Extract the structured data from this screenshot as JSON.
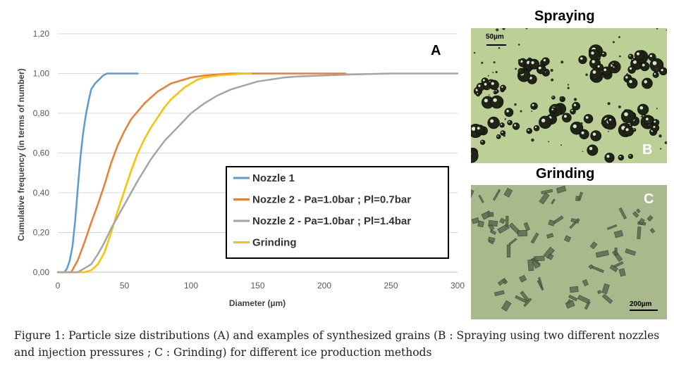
{
  "chart_data": {
    "type": "line",
    "letter": "A",
    "xlabel": "Diameter (µm)",
    "ylabel": "Cumulative frequency (in terms of number)",
    "xlim": [
      0,
      300
    ],
    "ylim": [
      0,
      1.2
    ],
    "xticks": [
      "0",
      "50",
      "100",
      "150",
      "200",
      "250",
      "300"
    ],
    "yticks": [
      "0,00",
      "0,20",
      "0,40",
      "0,60",
      "0,80",
      "1,00",
      "1,20"
    ],
    "grid": "horizontal",
    "legend_position": "center-right",
    "series": [
      {
        "name": "Nozzle 1",
        "color": "#5b9bd5",
        "x": [
          0,
          5,
          7,
          9,
          11,
          13,
          15,
          17,
          19,
          21,
          23,
          25,
          28,
          31,
          34,
          37,
          40,
          45,
          50,
          60
        ],
        "y": [
          0,
          0,
          0.02,
          0.06,
          0.13,
          0.26,
          0.42,
          0.58,
          0.7,
          0.79,
          0.86,
          0.92,
          0.95,
          0.97,
          0.99,
          1.0,
          1.0,
          1.0,
          1.0,
          1.0
        ]
      },
      {
        "name": "Nozzle 2 - Pa=1.0bar ; Pl=0.7bar",
        "color": "#ed7d31",
        "x": [
          0,
          10,
          15,
          20,
          25,
          30,
          35,
          40,
          45,
          50,
          55,
          60,
          65,
          70,
          75,
          80,
          85,
          90,
          95,
          100,
          110,
          120,
          130,
          140,
          150,
          175,
          200,
          216
        ],
        "y": [
          0,
          0,
          0.06,
          0.15,
          0.25,
          0.34,
          0.44,
          0.55,
          0.64,
          0.71,
          0.77,
          0.81,
          0.85,
          0.88,
          0.91,
          0.93,
          0.95,
          0.96,
          0.97,
          0.98,
          0.99,
          0.995,
          1.0,
          1.0,
          1.0,
          1.0,
          1.0,
          1.0
        ]
      },
      {
        "name": "Nozzle 2 - Pa=1.0bar ; Pl=1.4bar",
        "color": "#a5a5a5",
        "x": [
          0,
          15,
          20,
          25,
          30,
          35,
          40,
          50,
          60,
          70,
          80,
          90,
          100,
          110,
          120,
          130,
          140,
          150,
          160,
          170,
          180,
          200,
          220,
          250,
          275,
          300
        ],
        "y": [
          0,
          0,
          0.02,
          0.04,
          0.09,
          0.15,
          0.22,
          0.34,
          0.46,
          0.57,
          0.66,
          0.73,
          0.8,
          0.85,
          0.89,
          0.92,
          0.94,
          0.96,
          0.97,
          0.98,
          0.985,
          0.99,
          0.995,
          1.0,
          1.0,
          1.0
        ]
      },
      {
        "name": "Grinding",
        "color": "#ffc000",
        "x": [
          0,
          20,
          25,
          30,
          35,
          40,
          45,
          50,
          55,
          60,
          65,
          70,
          75,
          80,
          85,
          90,
          95,
          100,
          105,
          110,
          120,
          130,
          140,
          145
        ],
        "y": [
          0,
          0,
          0.01,
          0.04,
          0.1,
          0.2,
          0.31,
          0.41,
          0.51,
          0.6,
          0.67,
          0.73,
          0.78,
          0.83,
          0.87,
          0.9,
          0.93,
          0.95,
          0.97,
          0.98,
          0.99,
          0.995,
          1.0,
          1.0
        ]
      }
    ]
  },
  "photos": {
    "top": {
      "title": "Spraying",
      "letter": "B",
      "scale": "50µm",
      "bg": "#bccf96"
    },
    "bottom": {
      "title": "Grinding",
      "letter": "C",
      "scale": "200µm",
      "bg": "#a9b98c"
    }
  },
  "caption": "Figure 1: Particle size distributions (A) and examples of synthesized grains (B : Spraying using two different nozzles and injection pressures ; C : Grinding) for different ice production methods"
}
